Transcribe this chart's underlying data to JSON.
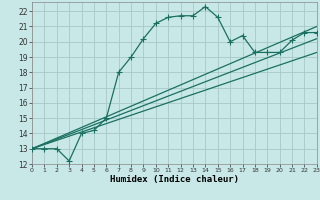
{
  "xlabel": "Humidex (Indice chaleur)",
  "background_color": "#c8e8e8",
  "grid_color": "#a8c8c8",
  "line_color": "#1a7060",
  "xlim": [
    0,
    23
  ],
  "ylim": [
    12,
    22.6
  ],
  "xtick_labels": [
    "0",
    "1",
    "2",
    "3",
    "4",
    "5",
    "6",
    "7",
    "8",
    "9",
    "10",
    "11",
    "12",
    "13",
    "14",
    "15",
    "16",
    "17",
    "18",
    "19",
    "20",
    "21",
    "22",
    "23"
  ],
  "ytick_labels": [
    "12",
    "13",
    "14",
    "15",
    "16",
    "17",
    "18",
    "19",
    "20",
    "21",
    "22"
  ],
  "ytick_values": [
    12,
    13,
    14,
    15,
    16,
    17,
    18,
    19,
    20,
    21,
    22
  ],
  "xtick_values": [
    0,
    1,
    2,
    3,
    4,
    5,
    6,
    7,
    8,
    9,
    10,
    11,
    12,
    13,
    14,
    15,
    16,
    17,
    18,
    19,
    20,
    21,
    22,
    23
  ],
  "series1_x": [
    0,
    1,
    2,
    3,
    4,
    5,
    6,
    7,
    8,
    9,
    10,
    11,
    12,
    13,
    14,
    15,
    16,
    17,
    18,
    19,
    20,
    21,
    22,
    23
  ],
  "series1_y": [
    13.0,
    13.0,
    13.0,
    12.2,
    14.0,
    14.2,
    15.0,
    18.0,
    19.0,
    20.2,
    21.2,
    21.6,
    21.7,
    21.7,
    22.3,
    21.6,
    20.0,
    20.4,
    19.3,
    19.3,
    19.3,
    20.1,
    20.6,
    20.6
  ],
  "series2_x": [
    0,
    23
  ],
  "series2_y": [
    13.0,
    21.0
  ],
  "series3_x": [
    0,
    23
  ],
  "series3_y": [
    13.0,
    20.2
  ],
  "series4_x": [
    0,
    23
  ],
  "series4_y": [
    13.0,
    19.3
  ],
  "markersize": 2.5,
  "linewidth": 0.9
}
